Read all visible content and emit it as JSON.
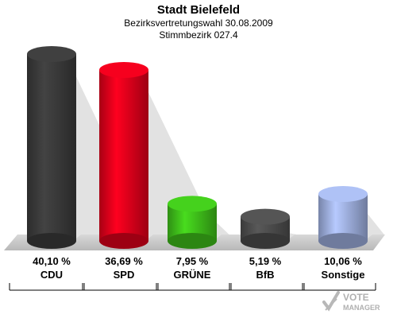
{
  "header": {
    "title": "Stadt Bielefeld",
    "subtitle1": "Bezirksvertretungswahl 30.08.2009",
    "subtitle2": "Stimmbezirk 027.4"
  },
  "chart_data": {
    "type": "bar",
    "categories": [
      "CDU",
      "SPD",
      "GRÜNE",
      "BfB",
      "Sonstige"
    ],
    "values": [
      40.1,
      36.69,
      7.95,
      5.19,
      10.06
    ],
    "value_labels": [
      "40,10 %",
      "36,69 %",
      "7,95 %",
      "5,19 %",
      "10,06 %"
    ],
    "colors": [
      "#3a3a3a",
      "#e0001b",
      "#3fbf1a",
      "#4d4d4d",
      "#9fb0e0"
    ],
    "title": "Stadt Bielefeld",
    "xlabel": "",
    "ylabel": "",
    "ylim": [
      0,
      40.1
    ],
    "grid": false
  },
  "watermark": {
    "line1": "VOTE",
    "line2": "MANAGER"
  }
}
